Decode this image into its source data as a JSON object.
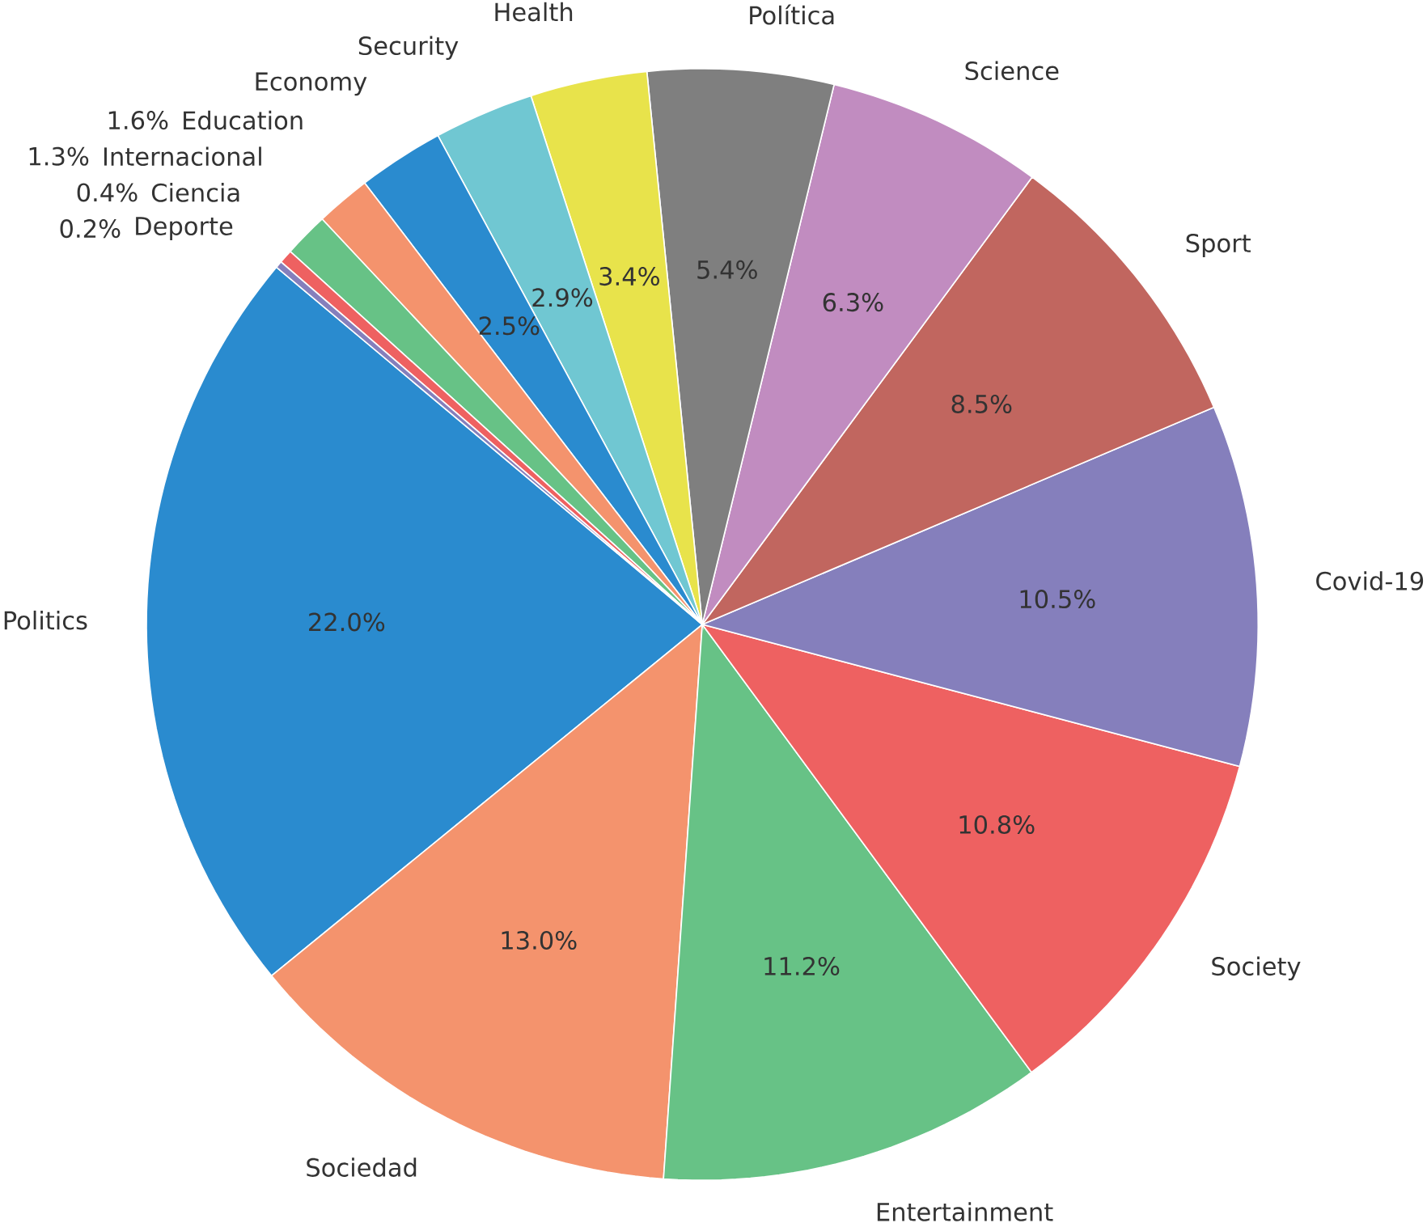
{
  "chart_data": {
    "type": "pie",
    "categories": [
      "Politics",
      "Sociedad",
      "Entertainment",
      "Society",
      "Covid-19",
      "Sport",
      "Science",
      "Política",
      "Health",
      "Security",
      "Economy",
      "Education",
      "Internacional",
      "Ciencia",
      "Deporte"
    ],
    "values": [
      22.0,
      13.0,
      11.2,
      10.8,
      10.5,
      8.5,
      6.3,
      5.4,
      3.4,
      2.9,
      2.5,
      1.6,
      1.3,
      0.4,
      0.2
    ],
    "value_labels": [
      "22.0%",
      "13.0%",
      "11.2%",
      "10.8%",
      "10.5%",
      "8.5%",
      "6.3%",
      "5.4%",
      "3.4%",
      "2.9%",
      "2.5%",
      "1.6%",
      "1.3%",
      "0.4%",
      "0.2%"
    ],
    "colors": [
      "#2a8bcf",
      "#f4936d",
      "#67c286",
      "#ee6161",
      "#857fbc",
      "#c1665f",
      "#c18cc0",
      "#7f7f7f",
      "#e8e34b",
      "#70c7d2",
      "#2a8bcf",
      "#f4936d",
      "#67c286",
      "#ee6161",
      "#857fbc"
    ]
  }
}
